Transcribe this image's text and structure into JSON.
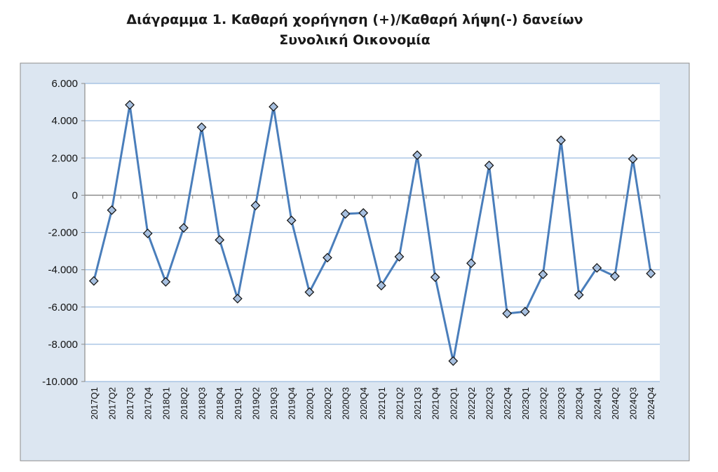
{
  "chart_data": {
    "type": "line",
    "title": "Διάγραμμα 1. Καθαρή χορήγηση (+)/Καθαρή λήψη(-) δανείων",
    "subtitle": "Συνολική Οικονομία",
    "xlabel": "",
    "ylabel": "",
    "ylim": [
      -10000,
      6000
    ],
    "y_ticks": [
      6000,
      4000,
      2000,
      0,
      -2000,
      -4000,
      -6000,
      -8000,
      -10000
    ],
    "y_tick_labels": [
      "6.000",
      "4.000",
      "2.000",
      "0",
      "-2.000",
      "-4.000",
      "-6.000",
      "-8.000",
      "-10.000"
    ],
    "grid": true,
    "legend": "none",
    "colors": {
      "outer_background": "#dce6f1",
      "plot_background": "#ffffff",
      "line": "#4a7ebb",
      "marker_fill": "#a7c0e0",
      "marker_stroke": "#1a1a1a",
      "gridline": "#9bbbe0",
      "axis": "#8c8c8c"
    },
    "marker": "diamond",
    "categories": [
      "2017Q1",
      "2017Q2",
      "2017Q3",
      "2017Q4",
      "2018Q1",
      "2018Q2",
      "2018Q3",
      "2018Q4",
      "2019Q1",
      "2019Q2",
      "2019Q3",
      "2019Q4",
      "2020Q1",
      "2020Q2",
      "2020Q3",
      "2020Q4",
      "2021Q1",
      "2021Q2",
      "2021Q3",
      "2021Q4",
      "2022Q1",
      "2022Q2",
      "2022Q3",
      "2022Q4",
      "2023Q1",
      "2023Q2",
      "2023Q3",
      "2023Q4",
      "2024Q1",
      "2024Q2",
      "2024Q3",
      "2024Q4"
    ],
    "series": [
      {
        "values": [
          -4600,
          -800,
          4850,
          -2050,
          -4650,
          -1750,
          3650,
          -2400,
          -5550,
          -550,
          4750,
          -1350,
          -5200,
          -3350,
          -1000,
          -950,
          -4850,
          -3300,
          2150,
          -4400,
          -8900,
          -3650,
          1600,
          -6350,
          -6250,
          -4250,
          2950,
          -5350,
          -3900,
          -4350,
          1950,
          -4200
        ]
      }
    ]
  }
}
